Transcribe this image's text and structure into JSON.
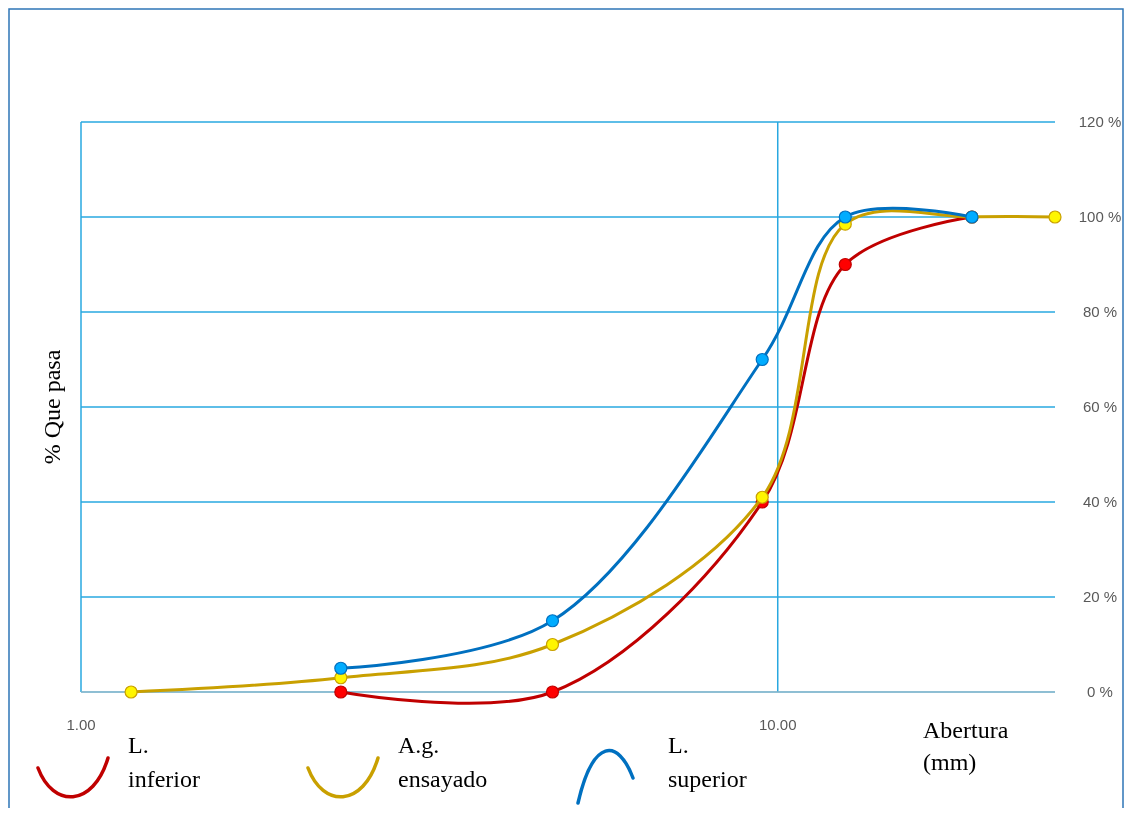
{
  "chart_data": {
    "type": "line",
    "xlabel": "Abertura (mm)",
    "ylabel": "% Que pasa",
    "log": "x",
    "xlim": [
      1,
      25
    ],
    "xticks": [
      {
        "value": 1,
        "label": "1.00"
      },
      {
        "value": 10,
        "label": "10.00"
      }
    ],
    "ylim": [
      0,
      120
    ],
    "yticks": [
      {
        "value": 0,
        "label": "0 %"
      },
      {
        "value": 20,
        "label": "20 %"
      },
      {
        "value": 40,
        "label": "40 %"
      },
      {
        "value": 60,
        "label": "60 %"
      },
      {
        "value": 80,
        "label": "80 %"
      },
      {
        "value": 100,
        "label": "100 %"
      },
      {
        "value": 120,
        "label": "120 %"
      }
    ],
    "grid": true,
    "legend": "bottom",
    "marker": "circle",
    "line_style": "solid",
    "series": [
      {
        "name": "L. inferior",
        "color": "#c00000",
        "x": [
          2.36,
          4.75,
          9.5,
          12.5,
          19
        ],
        "values": [
          0,
          0,
          40,
          90,
          100
        ]
      },
      {
        "name": "A.g. ensayado",
        "color": "#c9a000",
        "x": [
          1.18,
          2.36,
          4.75,
          9.5,
          12.5,
          19,
          25
        ],
        "values": [
          0,
          3,
          10,
          41,
          98.5,
          100,
          100
        ]
      },
      {
        "name": "L. superior",
        "color": "#0070c0",
        "x": [
          2.36,
          4.75,
          9.5,
          12.5,
          19
        ],
        "values": [
          5,
          15,
          70,
          100,
          100
        ]
      }
    ]
  }
}
